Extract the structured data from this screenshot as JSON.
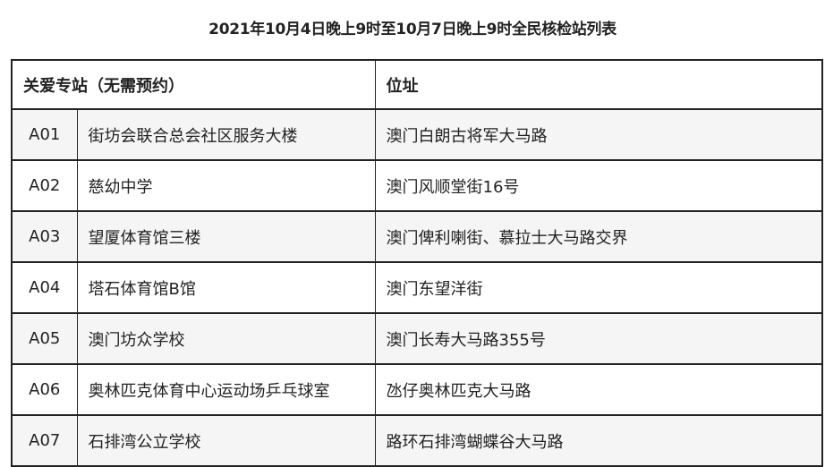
{
  "title": "2021年10月4日晚上9时至10月7日晚上9时全民核检站列表",
  "table": {
    "headers": [
      "关爱专站（无需预约）",
      "位址"
    ],
    "rows": [
      {
        "code": "A01",
        "name": "街坊会联合总会社区服务大楼",
        "address": "澳门白朗古将军大马路"
      },
      {
        "code": "A02",
        "name": "慈幼中学",
        "address": "澳门风顺堂街16号"
      },
      {
        "code": "A03",
        "name": "望厦体育馆三楼",
        "address": "澳门俾利喇街、慕拉士大马路交界"
      },
      {
        "code": "A04",
        "name": "塔石体育馆B馆",
        "address": "澳门东望洋街"
      },
      {
        "code": "A05",
        "name": "澳门坊众学校",
        "address": "澳门长寿大马路355号"
      },
      {
        "code": "A06",
        "name": "奥林匹克体育中心运动场乒乓球室",
        "address": "氹仔奥林匹克大马路"
      },
      {
        "code": "A07",
        "name": "石排湾公立学校",
        "address": "路环石排湾蝴蝶谷大马路"
      }
    ]
  }
}
